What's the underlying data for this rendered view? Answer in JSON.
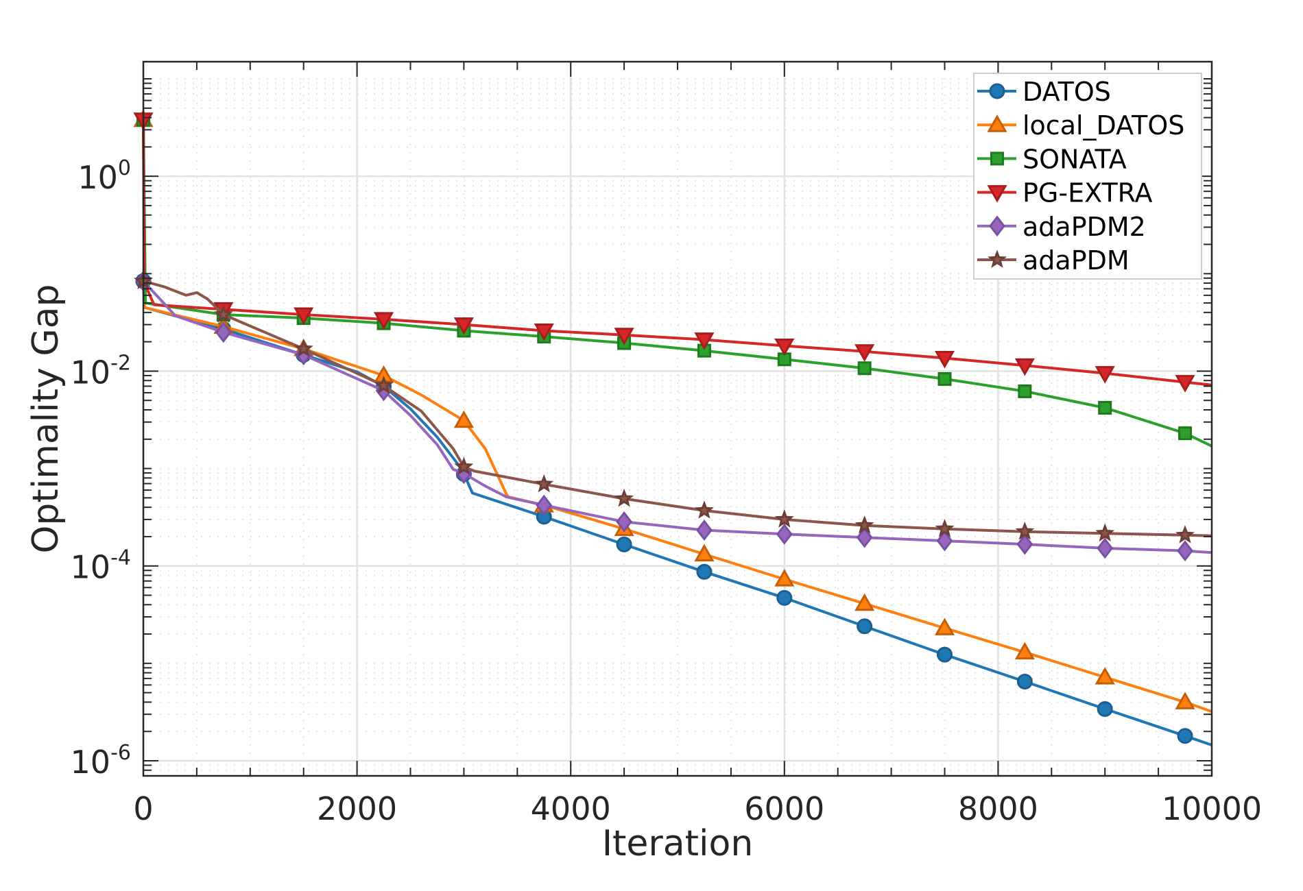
{
  "chart_data": {
    "type": "line",
    "title": "",
    "xlabel": "Iteration",
    "ylabel": "Optimality Gap",
    "xscale": "linear",
    "yscale": "log",
    "xlim": [
      0,
      10000
    ],
    "ylim": [
      7e-07,
      15
    ],
    "x_ticks": [
      0,
      2000,
      4000,
      6000,
      8000,
      10000
    ],
    "x_tick_labels": [
      "0",
      "2000",
      "4000",
      "6000",
      "8000",
      "10000"
    ],
    "y_ticks": [
      1,
      0.01,
      0.0001,
      1e-06
    ],
    "y_tick_labels": [
      {
        "base": "10",
        "exp": "0"
      },
      {
        "base": "10",
        "exp": "-2"
      },
      {
        "base": "10",
        "exp": "-4"
      },
      {
        "base": "10",
        "exp": "-6"
      }
    ],
    "grid": true,
    "minor_grid": true,
    "legend_placement": "top-right",
    "marker_every": 750,
    "series": [
      {
        "name": "DATOS",
        "color": "#1f77b4",
        "marker_color": "#1a5f91",
        "marker": "circle",
        "x": [
          0,
          10,
          750,
          1500,
          2000,
          2250,
          2500,
          2750,
          2950,
          3000,
          3080,
          3750,
          4500,
          5250,
          6000,
          6750,
          7500,
          8250,
          9000,
          9750,
          10000
        ],
        "y": [
          0.084,
          0.045,
          0.027,
          0.0147,
          0.0098,
          0.007,
          0.0041,
          0.0021,
          0.00109,
          0.00088,
          0.00056,
          0.00032,
          0.000166,
          8.7e-05,
          4.7e-05,
          2.4e-05,
          1.23e-05,
          6.5e-06,
          3.4e-06,
          1.8e-06,
          1.45e-06
        ]
      },
      {
        "name": "local_DATOS",
        "color": "#ff7f0e",
        "marker_color": "#c45f08",
        "marker": "triangle-up",
        "x": [
          0,
          10,
          750,
          1500,
          2250,
          2600,
          3000,
          3200,
          3400,
          3420,
          3750,
          4500,
          5250,
          6000,
          6750,
          7500,
          8250,
          9000,
          9750,
          10000
        ],
        "y": [
          3.8,
          0.045,
          0.0286,
          0.0169,
          0.009,
          0.0057,
          0.0031,
          0.0016,
          0.00054,
          0.00051,
          0.00042,
          0.00024,
          0.000132,
          7.3e-05,
          4.1e-05,
          2.3e-05,
          1.3e-05,
          7.2e-06,
          4e-06,
          3.2e-06
        ]
      },
      {
        "name": "SONATA",
        "color": "#2ca02c",
        "marker_color": "#1f7a1f",
        "marker": "square",
        "x": [
          0,
          20,
          750,
          1500,
          2250,
          3000,
          3750,
          4500,
          5250,
          6000,
          6750,
          7500,
          8250,
          9000,
          9750,
          10000
        ],
        "y": [
          3.8,
          0.05,
          0.038,
          0.035,
          0.031,
          0.026,
          0.0226,
          0.0194,
          0.0162,
          0.0132,
          0.0107,
          0.0083,
          0.0062,
          0.0042,
          0.0023,
          0.0017
        ]
      },
      {
        "name": "PG-EXTRA",
        "color": "#d62728",
        "marker_color": "#a81c1d",
        "marker": "triangle-down",
        "x": [
          0,
          10,
          100,
          750,
          1500,
          2250,
          3000,
          3750,
          4500,
          5250,
          6000,
          6750,
          7500,
          8250,
          9000,
          9750,
          10000
        ],
        "y": [
          3.8,
          0.08,
          0.048,
          0.043,
          0.038,
          0.034,
          0.03,
          0.026,
          0.0235,
          0.021,
          0.0182,
          0.0159,
          0.0136,
          0.0114,
          0.0095,
          0.0077,
          0.0072
        ]
      },
      {
        "name": "adaPDM2",
        "color": "#9467bd",
        "marker_color": "#7a4fa3",
        "marker": "diamond",
        "x": [
          0,
          300,
          750,
          1500,
          2250,
          2500,
          2750,
          2900,
          3000,
          3200,
          3400,
          3750,
          4500,
          5250,
          6000,
          6750,
          7500,
          8250,
          9000,
          9750,
          10000
        ],
        "y": [
          0.084,
          0.037,
          0.025,
          0.0147,
          0.0063,
          0.0035,
          0.00176,
          0.00098,
          0.00089,
          0.00066,
          0.00051,
          0.00042,
          0.000284,
          0.000233,
          0.000212,
          0.000196,
          0.000181,
          0.000167,
          0.000152,
          0.000143,
          0.000137
        ]
      },
      {
        "name": "adaPDM",
        "color": "#8c564b",
        "marker_color": "#6b3f36",
        "marker": "star",
        "x": [
          0,
          200,
          400,
          500,
          600,
          750,
          1500,
          2250,
          2600,
          2900,
          3000,
          3100,
          3750,
          4500,
          5250,
          6000,
          6750,
          7500,
          8250,
          9000,
          9750,
          10000
        ],
        "y": [
          0.084,
          0.073,
          0.06,
          0.064,
          0.055,
          0.038,
          0.0169,
          0.0071,
          0.0039,
          0.0016,
          0.00104,
          0.00094,
          0.00069,
          0.00049,
          0.00037,
          0.0003,
          0.00026,
          0.00024,
          0.000225,
          0.000216,
          0.000207,
          0.000204
        ]
      }
    ]
  }
}
